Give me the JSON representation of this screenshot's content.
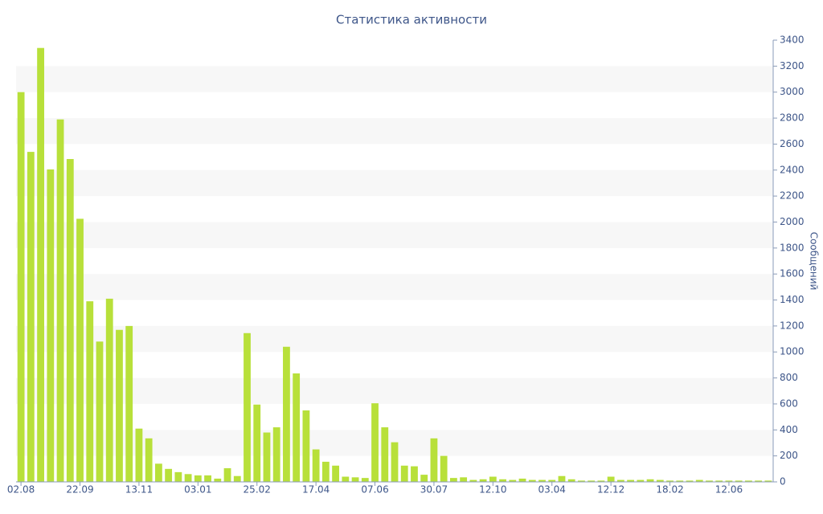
{
  "chart_data": {
    "type": "bar",
    "title": "Статистика активности",
    "y_label": "Сообщений",
    "categories": [
      "02.08",
      null,
      null,
      null,
      null,
      null,
      "22.09",
      null,
      null,
      null,
      null,
      null,
      "13.11",
      null,
      null,
      null,
      null,
      null,
      "03.01",
      null,
      null,
      null,
      null,
      null,
      "25.02",
      null,
      null,
      null,
      null,
      null,
      "17.04",
      null,
      null,
      null,
      null,
      null,
      "07.06",
      null,
      null,
      null,
      null,
      null,
      "30.07",
      null,
      null,
      null,
      null,
      null,
      "12.10",
      null,
      null,
      null,
      null,
      null,
      "03.04",
      null,
      null,
      null,
      null,
      null,
      "12.12",
      null,
      null,
      null,
      null,
      null,
      "18.02",
      null,
      null,
      null,
      null,
      null,
      "12.06",
      null,
      null,
      null,
      null
    ],
    "values": [
      3000,
      2540,
      3340,
      2405,
      2790,
      2485,
      2025,
      1390,
      1080,
      1410,
      1170,
      1200,
      410,
      335,
      140,
      100,
      75,
      60,
      50,
      50,
      25,
      105,
      45,
      1145,
      595,
      380,
      420,
      1040,
      835,
      550,
      250,
      155,
      125,
      40,
      35,
      30,
      605,
      420,
      305,
      125,
      120,
      55,
      335,
      200,
      30,
      35,
      15,
      20,
      40,
      20,
      15,
      25,
      15,
      15,
      15,
      45,
      20,
      10,
      10,
      10,
      40,
      15,
      15,
      15,
      20,
      15,
      10,
      10,
      10,
      15,
      10,
      10,
      10,
      10,
      10,
      10,
      10
    ],
    "color": "#b8e03a",
    "ylim": [
      0,
      3400
    ],
    "yticks": [
      0,
      200,
      400,
      600,
      800,
      1000,
      1200,
      1400,
      1600,
      1800,
      2000,
      2200,
      2400,
      2600,
      2800,
      3000,
      3200,
      3400
    ],
    "y_axis_side": "right",
    "grid": "bands"
  }
}
